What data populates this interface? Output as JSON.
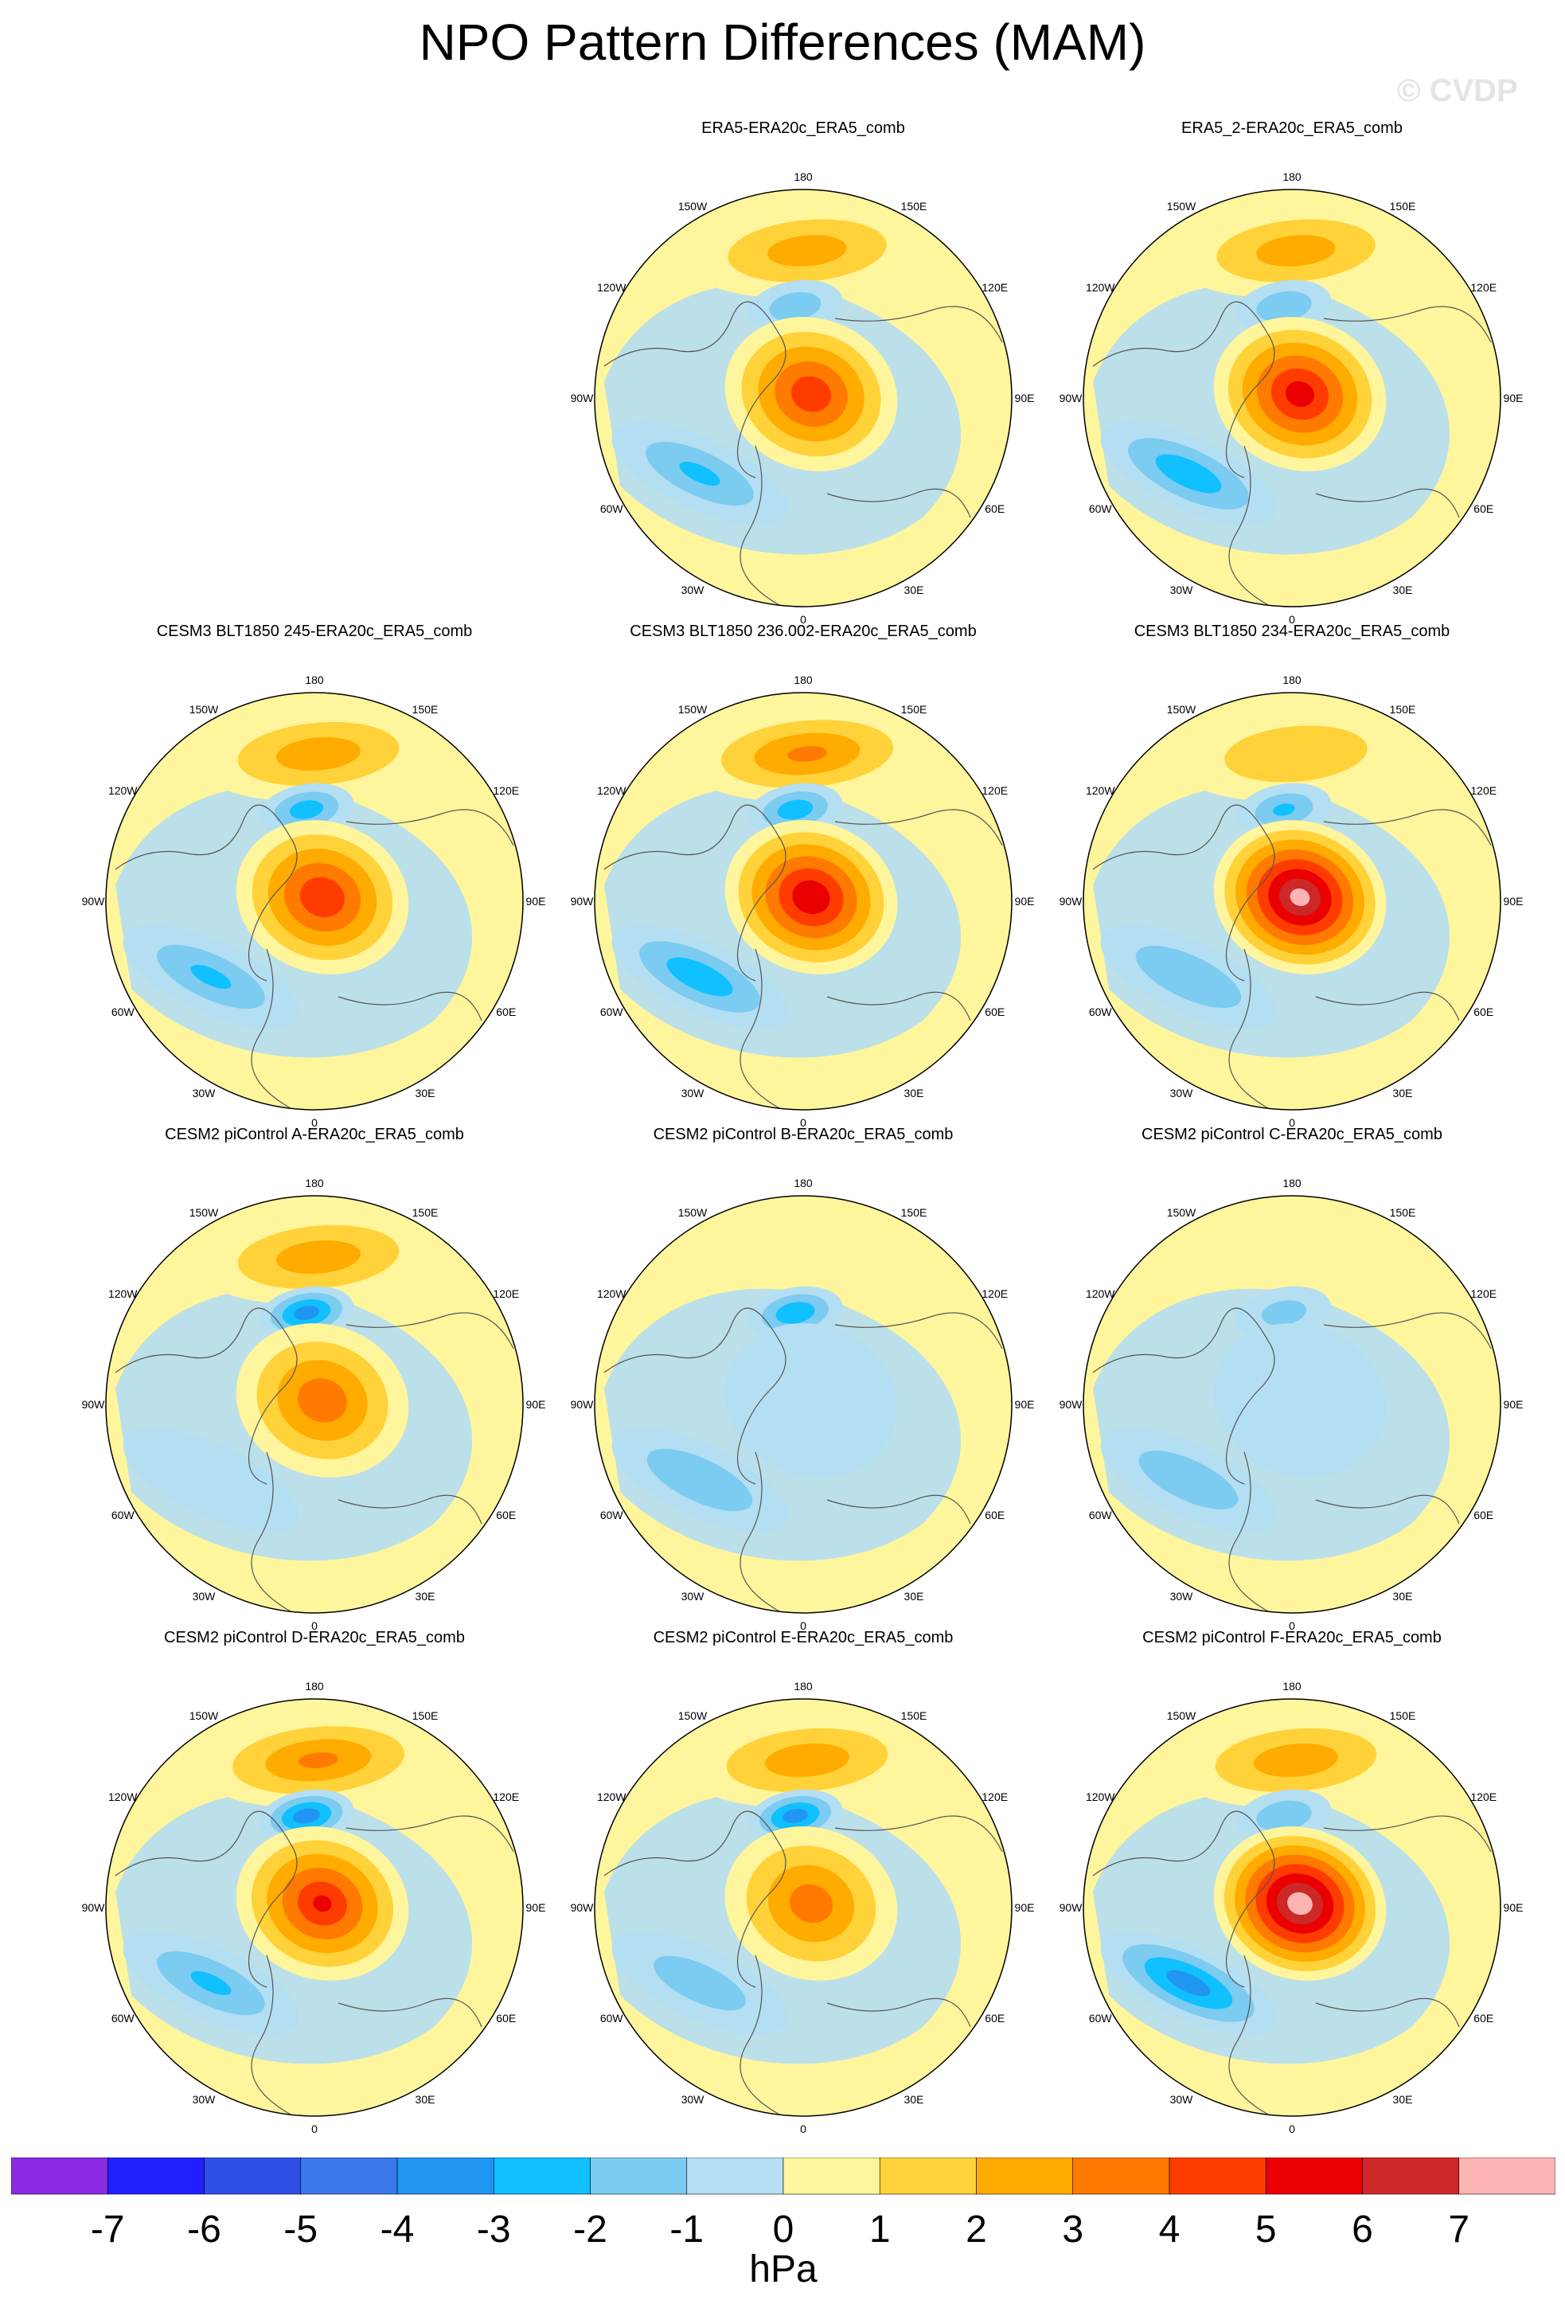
{
  "title": "NPO Pattern Differences (MAM)",
  "watermark": "© CVDP",
  "chart_data": {
    "type": "heatmap",
    "projection": "north-polar-stereographic",
    "variable": "sea level pressure difference",
    "colorbar": {
      "unit": "hPa",
      "ticks": [
        "-7",
        "-6",
        "-5",
        "-4",
        "-3",
        "-2",
        "-1",
        "0",
        "1",
        "2",
        "3",
        "4",
        "5",
        "6",
        "7"
      ],
      "colors": [
        "#8a2be2",
        "#1f1fff",
        "#2e4fe6",
        "#3b78ec",
        "#2096f2",
        "#10c0ff",
        "#7ccbf0",
        "#b4def2",
        "#fff59c",
        "#ffd23a",
        "#ffab00",
        "#ff7a00",
        "#ff3c00",
        "#ea0000",
        "#cd2828",
        "#ffb4b4"
      ]
    },
    "longitude_labels": [
      "180",
      "150E",
      "120E",
      "90E",
      "60E",
      "30E",
      "0",
      "30W",
      "60W",
      "90W",
      "120W",
      "150W"
    ],
    "panels": [
      {
        "title": "ERA5-ERA20c_ERA5_comb",
        "north_pacific_max": 2.4,
        "arctic_center": 4.6,
        "atlantic_min": -2.0,
        "aleutian_min": -1.6
      },
      {
        "title": "ERA5_2-ERA20c_ERA5_comb",
        "north_pacific_max": 2.4,
        "arctic_center": 5.4,
        "atlantic_min": -2.6,
        "aleutian_min": -1.8
      },
      {
        "title": "CESM3 BLT1850 245-ERA20c_ERA5_comb",
        "north_pacific_max": 2.5,
        "arctic_center": 4.8,
        "atlantic_min": -2.0,
        "aleutian_min": -2.5
      },
      {
        "title": "CESM3 BLT1850 236.002-ERA20c_ERA5_comb",
        "north_pacific_max": 3.0,
        "arctic_center": 5.8,
        "atlantic_min": -2.6,
        "aleutian_min": -2.6
      },
      {
        "title": "CESM3 BLT1850 234-ERA20c_ERA5_comb",
        "north_pacific_max": 1.9,
        "arctic_center": 7.3,
        "atlantic_min": -1.9,
        "aleutian_min": -2.0
      },
      {
        "title": "CESM2 piControl A-ERA20c_ERA5_comb",
        "north_pacific_max": 2.5,
        "arctic_center": 3.6,
        "atlantic_min": -0.5,
        "aleutian_min": -3.5
      },
      {
        "title": "CESM2 piControl B-ERA20c_ERA5_comb",
        "north_pacific_max": 0.0,
        "arctic_center": -0.5,
        "atlantic_min": -1.9,
        "aleutian_min": -2.8
      },
      {
        "title": "CESM2 piControl C-ERA20c_ERA5_comb",
        "north_pacific_max": 0.0,
        "arctic_center": -0.4,
        "atlantic_min": -1.7,
        "aleutian_min": -1.3
      },
      {
        "title": "CESM2 piControl D-ERA20c_ERA5_comb",
        "north_pacific_max": 3.0,
        "arctic_center": 5.0,
        "atlantic_min": -2.0,
        "aleutian_min": -3.6
      },
      {
        "title": "CESM2 piControl E-ERA20c_ERA5_comb",
        "north_pacific_max": 2.5,
        "arctic_center": 3.4,
        "atlantic_min": -1.5,
        "aleutian_min": -3.5
      },
      {
        "title": "CESM2 piControl F-ERA20c_ERA5_comb",
        "north_pacific_max": 2.5,
        "arctic_center": 7.6,
        "atlantic_min": -3.4,
        "aleutian_min": -1.8
      }
    ]
  }
}
